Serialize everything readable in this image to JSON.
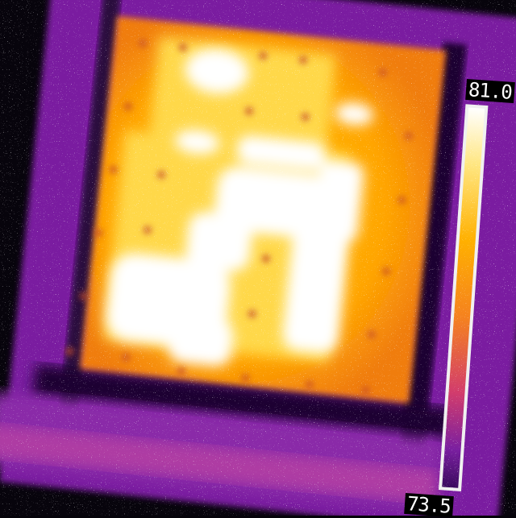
{
  "image": {
    "kind": "thermal-camera-photo",
    "subject": "heated-plate-with-bright-hotspot-pattern",
    "palette": [
      "#000000",
      "#3a0a5e",
      "#7a1fa0",
      "#d23c6c",
      "#f5821e",
      "#ffb000",
      "#ffe680",
      "#ffffff"
    ]
  },
  "scale": {
    "max_label": "81.0",
    "min_label": "73.5"
  }
}
